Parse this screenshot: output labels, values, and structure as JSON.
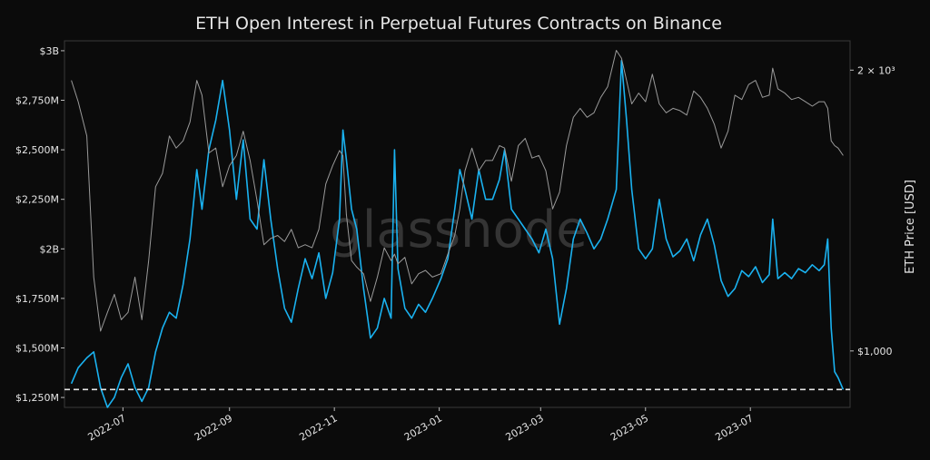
{
  "chart_data": {
    "type": "line",
    "title": "ETH Open Interest in Perpetual Futures Contracts on Binance",
    "watermark": "glassnode",
    "xlabel": "",
    "ylabel_left": "",
    "ylabel_right": "ETH Price [USD]",
    "x_tick_labels": [
      "2022-07",
      "2022-09",
      "2022-11",
      "2023-01",
      "2023-03",
      "2023-05",
      "2023-07"
    ],
    "y_left_ticks": [
      {
        "label": "$1,250M",
        "value": 1250
      },
      {
        "label": "$1,500M",
        "value": 1500
      },
      {
        "label": "$1,750M",
        "value": 1750
      },
      {
        "label": "$2B",
        "value": 2000
      },
      {
        "label": "$2,250M",
        "value": 2250
      },
      {
        "label": "$2,500M",
        "value": 2500
      },
      {
        "label": "$2,750M",
        "value": 2750
      },
      {
        "label": "$3B",
        "value": 3000
      }
    ],
    "y_left_range_musd": [
      1200,
      3050
    ],
    "y_right_scale": "log",
    "y_right_range_usd": [
      870,
      2150
    ],
    "y_right_ticks": [
      {
        "label": "$1,000",
        "value": 1000
      },
      {
        "label": "2 × 10³",
        "value": 2000
      }
    ],
    "reference_line": {
      "value_musd": 1290,
      "style": "dashed",
      "color": "#e6e6e6"
    },
    "grid": false,
    "colors": {
      "background": "#0b0b0b",
      "open_interest": "#1ab2f0",
      "price": "#9a9a9a",
      "text": "#e6e6e6"
    },
    "series": [
      {
        "axis": "left",
        "unit": "USD millions",
        "color": "#1ab2f0",
        "points": [
          [
            "2022-06-01",
            1320
          ],
          [
            "2022-06-05",
            1400
          ],
          [
            "2022-06-10",
            1450
          ],
          [
            "2022-06-14",
            1480
          ],
          [
            "2022-06-18",
            1300
          ],
          [
            "2022-06-22",
            1200
          ],
          [
            "2022-06-26",
            1250
          ],
          [
            "2022-06-30",
            1350
          ],
          [
            "2022-07-04",
            1420
          ],
          [
            "2022-07-08",
            1300
          ],
          [
            "2022-07-12",
            1230
          ],
          [
            "2022-07-16",
            1300
          ],
          [
            "2022-07-20",
            1480
          ],
          [
            "2022-07-24",
            1600
          ],
          [
            "2022-07-28",
            1680
          ],
          [
            "2022-08-01",
            1650
          ],
          [
            "2022-08-05",
            1820
          ],
          [
            "2022-08-09",
            2050
          ],
          [
            "2022-08-13",
            2400
          ],
          [
            "2022-08-16",
            2200
          ],
          [
            "2022-08-20",
            2500
          ],
          [
            "2022-08-24",
            2650
          ],
          [
            "2022-08-28",
            2850
          ],
          [
            "2022-09-01",
            2600
          ],
          [
            "2022-09-05",
            2250
          ],
          [
            "2022-09-09",
            2550
          ],
          [
            "2022-09-13",
            2150
          ],
          [
            "2022-09-17",
            2100
          ],
          [
            "2022-09-21",
            2450
          ],
          [
            "2022-09-25",
            2150
          ],
          [
            "2022-09-29",
            1900
          ],
          [
            "2022-10-03",
            1700
          ],
          [
            "2022-10-07",
            1630
          ],
          [
            "2022-10-11",
            1800
          ],
          [
            "2022-10-15",
            1950
          ],
          [
            "2022-10-19",
            1850
          ],
          [
            "2022-10-23",
            1980
          ],
          [
            "2022-10-27",
            1750
          ],
          [
            "2022-10-31",
            1880
          ],
          [
            "2022-11-04",
            2150
          ],
          [
            "2022-11-06",
            2600
          ],
          [
            "2022-11-08",
            2450
          ],
          [
            "2022-11-11",
            2200
          ],
          [
            "2022-11-14",
            2100
          ],
          [
            "2022-11-18",
            1800
          ],
          [
            "2022-11-22",
            1550
          ],
          [
            "2022-11-26",
            1600
          ],
          [
            "2022-11-30",
            1750
          ],
          [
            "2022-12-04",
            1650
          ],
          [
            "2022-12-06",
            2500
          ],
          [
            "2022-12-08",
            1900
          ],
          [
            "2022-12-12",
            1700
          ],
          [
            "2022-12-16",
            1650
          ],
          [
            "2022-12-20",
            1720
          ],
          [
            "2022-12-24",
            1680
          ],
          [
            "2022-12-28",
            1750
          ],
          [
            "2023-01-02",
            1850
          ],
          [
            "2023-01-06",
            1950
          ],
          [
            "2023-01-10",
            2200
          ],
          [
            "2023-01-13",
            2400
          ],
          [
            "2023-01-16",
            2300
          ],
          [
            "2023-01-20",
            2150
          ],
          [
            "2023-01-24",
            2400
          ],
          [
            "2023-01-28",
            2250
          ],
          [
            "2023-02-01",
            2250
          ],
          [
            "2023-02-05",
            2350
          ],
          [
            "2023-02-08",
            2500
          ],
          [
            "2023-02-12",
            2200
          ],
          [
            "2023-02-16",
            2150
          ],
          [
            "2023-02-20",
            2100
          ],
          [
            "2023-02-24",
            2050
          ],
          [
            "2023-02-28",
            1980
          ],
          [
            "2023-03-04",
            2100
          ],
          [
            "2023-03-08",
            1950
          ],
          [
            "2023-03-12",
            1620
          ],
          [
            "2023-03-16",
            1800
          ],
          [
            "2023-03-20",
            2050
          ],
          [
            "2023-03-24",
            2150
          ],
          [
            "2023-03-28",
            2080
          ],
          [
            "2023-04-01",
            2000
          ],
          [
            "2023-04-05",
            2050
          ],
          [
            "2023-04-09",
            2150
          ],
          [
            "2023-04-14",
            2300
          ],
          [
            "2023-04-17",
            2950
          ],
          [
            "2023-04-20",
            2650
          ],
          [
            "2023-04-23",
            2300
          ],
          [
            "2023-04-27",
            2000
          ],
          [
            "2023-05-01",
            1950
          ],
          [
            "2023-05-05",
            2000
          ],
          [
            "2023-05-09",
            2250
          ],
          [
            "2023-05-13",
            2050
          ],
          [
            "2023-05-17",
            1960
          ],
          [
            "2023-05-21",
            1990
          ],
          [
            "2023-05-25",
            2050
          ],
          [
            "2023-05-29",
            1940
          ],
          [
            "2023-06-02",
            2070
          ],
          [
            "2023-06-06",
            2150
          ],
          [
            "2023-06-10",
            2020
          ],
          [
            "2023-06-14",
            1840
          ],
          [
            "2023-06-18",
            1760
          ],
          [
            "2023-06-22",
            1800
          ],
          [
            "2023-06-26",
            1890
          ],
          [
            "2023-06-30",
            1860
          ],
          [
            "2023-07-04",
            1910
          ],
          [
            "2023-07-08",
            1830
          ],
          [
            "2023-07-12",
            1870
          ],
          [
            "2023-07-14",
            2150
          ],
          [
            "2023-07-17",
            1850
          ],
          [
            "2023-07-21",
            1880
          ],
          [
            "2023-07-25",
            1850
          ],
          [
            "2023-07-29",
            1900
          ],
          [
            "2023-08-02",
            1880
          ],
          [
            "2023-08-06",
            1920
          ],
          [
            "2023-08-10",
            1890
          ],
          [
            "2023-08-13",
            1920
          ],
          [
            "2023-08-15",
            2050
          ],
          [
            "2023-08-17",
            1600
          ],
          [
            "2023-08-19",
            1380
          ],
          [
            "2023-08-21",
            1350
          ],
          [
            "2023-08-24",
            1290
          ]
        ]
      },
      {
        "axis": "right",
        "unit": "USD",
        "color": "#9a9a9a",
        "points": [
          [
            "2022-06-01",
            1950
          ],
          [
            "2022-06-05",
            1850
          ],
          [
            "2022-06-10",
            1700
          ],
          [
            "2022-06-14",
            1200
          ],
          [
            "2022-06-18",
            1050
          ],
          [
            "2022-06-22",
            1100
          ],
          [
            "2022-06-26",
            1150
          ],
          [
            "2022-06-30",
            1080
          ],
          [
            "2022-07-04",
            1100
          ],
          [
            "2022-07-08",
            1200
          ],
          [
            "2022-07-12",
            1080
          ],
          [
            "2022-07-16",
            1250
          ],
          [
            "2022-07-20",
            1500
          ],
          [
            "2022-07-24",
            1550
          ],
          [
            "2022-07-28",
            1700
          ],
          [
            "2022-08-01",
            1650
          ],
          [
            "2022-08-05",
            1680
          ],
          [
            "2022-08-09",
            1760
          ],
          [
            "2022-08-13",
            1950
          ],
          [
            "2022-08-16",
            1880
          ],
          [
            "2022-08-20",
            1630
          ],
          [
            "2022-08-24",
            1650
          ],
          [
            "2022-08-28",
            1500
          ],
          [
            "2022-09-01",
            1580
          ],
          [
            "2022-09-05",
            1620
          ],
          [
            "2022-09-09",
            1720
          ],
          [
            "2022-09-13",
            1600
          ],
          [
            "2022-09-17",
            1450
          ],
          [
            "2022-09-21",
            1300
          ],
          [
            "2022-09-25",
            1320
          ],
          [
            "2022-09-29",
            1330
          ],
          [
            "2022-10-03",
            1310
          ],
          [
            "2022-10-07",
            1350
          ],
          [
            "2022-10-11",
            1290
          ],
          [
            "2022-10-15",
            1300
          ],
          [
            "2022-10-19",
            1290
          ],
          [
            "2022-10-23",
            1350
          ],
          [
            "2022-10-27",
            1510
          ],
          [
            "2022-10-31",
            1580
          ],
          [
            "2022-11-04",
            1640
          ],
          [
            "2022-11-06",
            1620
          ],
          [
            "2022-11-08",
            1400
          ],
          [
            "2022-11-11",
            1250
          ],
          [
            "2022-11-14",
            1230
          ],
          [
            "2022-11-18",
            1210
          ],
          [
            "2022-11-22",
            1130
          ],
          [
            "2022-11-26",
            1200
          ],
          [
            "2022-11-30",
            1290
          ],
          [
            "2022-12-04",
            1250
          ],
          [
            "2022-12-06",
            1270
          ],
          [
            "2022-12-08",
            1240
          ],
          [
            "2022-12-12",
            1260
          ],
          [
            "2022-12-16",
            1180
          ],
          [
            "2022-12-20",
            1210
          ],
          [
            "2022-12-24",
            1220
          ],
          [
            "2022-12-28",
            1200
          ],
          [
            "2023-01-02",
            1210
          ],
          [
            "2023-01-06",
            1270
          ],
          [
            "2023-01-10",
            1330
          ],
          [
            "2023-01-13",
            1420
          ],
          [
            "2023-01-16",
            1560
          ],
          [
            "2023-01-20",
            1650
          ],
          [
            "2023-01-24",
            1560
          ],
          [
            "2023-01-28",
            1600
          ],
          [
            "2023-02-01",
            1600
          ],
          [
            "2023-02-05",
            1660
          ],
          [
            "2023-02-08",
            1650
          ],
          [
            "2023-02-12",
            1520
          ],
          [
            "2023-02-16",
            1660
          ],
          [
            "2023-02-20",
            1690
          ],
          [
            "2023-02-24",
            1610
          ],
          [
            "2023-02-28",
            1620
          ],
          [
            "2023-03-04",
            1560
          ],
          [
            "2023-03-08",
            1420
          ],
          [
            "2023-03-12",
            1480
          ],
          [
            "2023-03-16",
            1660
          ],
          [
            "2023-03-20",
            1780
          ],
          [
            "2023-03-24",
            1820
          ],
          [
            "2023-03-28",
            1780
          ],
          [
            "2023-04-01",
            1800
          ],
          [
            "2023-04-05",
            1870
          ],
          [
            "2023-04-09",
            1920
          ],
          [
            "2023-04-14",
            2100
          ],
          [
            "2023-04-17",
            2060
          ],
          [
            "2023-04-20",
            1950
          ],
          [
            "2023-04-23",
            1840
          ],
          [
            "2023-04-27",
            1890
          ],
          [
            "2023-05-01",
            1850
          ],
          [
            "2023-05-05",
            1980
          ],
          [
            "2023-05-09",
            1840
          ],
          [
            "2023-05-13",
            1800
          ],
          [
            "2023-05-17",
            1820
          ],
          [
            "2023-05-21",
            1810
          ],
          [
            "2023-05-25",
            1790
          ],
          [
            "2023-05-29",
            1900
          ],
          [
            "2023-06-02",
            1870
          ],
          [
            "2023-06-06",
            1820
          ],
          [
            "2023-06-10",
            1750
          ],
          [
            "2023-06-14",
            1650
          ],
          [
            "2023-06-18",
            1720
          ],
          [
            "2023-06-22",
            1880
          ],
          [
            "2023-06-26",
            1860
          ],
          [
            "2023-06-30",
            1930
          ],
          [
            "2023-07-04",
            1950
          ],
          [
            "2023-07-08",
            1870
          ],
          [
            "2023-07-12",
            1880
          ],
          [
            "2023-07-14",
            2010
          ],
          [
            "2023-07-17",
            1910
          ],
          [
            "2023-07-21",
            1890
          ],
          [
            "2023-07-25",
            1860
          ],
          [
            "2023-07-29",
            1870
          ],
          [
            "2023-08-02",
            1850
          ],
          [
            "2023-08-06",
            1830
          ],
          [
            "2023-08-10",
            1850
          ],
          [
            "2023-08-13",
            1850
          ],
          [
            "2023-08-15",
            1820
          ],
          [
            "2023-08-17",
            1680
          ],
          [
            "2023-08-19",
            1660
          ],
          [
            "2023-08-21",
            1650
          ],
          [
            "2023-08-24",
            1620
          ]
        ]
      }
    ]
  }
}
